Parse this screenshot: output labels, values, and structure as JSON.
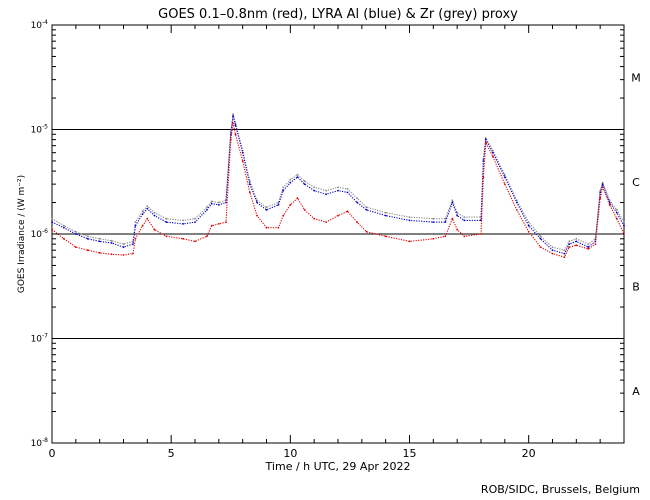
{
  "chart_data": {
    "type": "line",
    "title": "GOES 0.1–0.8nm (red), LYRA Al (blue) & Zr (grey) proxy",
    "xlabel": "Time / h UTC, 29 Apr 2022",
    "ylabel": "GOES Irradiance / (W m⁻²)",
    "xlim": [
      0,
      24
    ],
    "ylim": [
      1e-08,
      0.0001
    ],
    "yscale": "log",
    "x_ticks": [
      0,
      5,
      10,
      15,
      20
    ],
    "y_ticks": [
      {
        "value": 0.0001,
        "mant": "10",
        "exp": "-4"
      },
      {
        "value": 1e-05,
        "mant": "10",
        "exp": "-5"
      },
      {
        "value": 1e-06,
        "mant": "10",
        "exp": "-6"
      },
      {
        "value": 1e-07,
        "mant": "10",
        "exp": "-7"
      },
      {
        "value": 1e-08,
        "mant": "10",
        "exp": "-8"
      }
    ],
    "class_lines": [
      1e-05,
      1e-06,
      1e-07
    ],
    "flare_classes": [
      {
        "label": "M",
        "value": 3.16e-05
      },
      {
        "label": "C",
        "value": 3.16e-06
      },
      {
        "label": "B",
        "value": 3.16e-07
      },
      {
        "label": "A",
        "value": 3.16e-08
      }
    ],
    "series": [
      {
        "name": "GOES 0.1–0.8nm",
        "color": "#e00000",
        "points": [
          [
            0,
            1.1e-06
          ],
          [
            0.5,
            9e-07
          ],
          [
            1,
            7.5e-07
          ],
          [
            1.5,
            7e-07
          ],
          [
            2,
            6.6e-07
          ],
          [
            2.5,
            6.4e-07
          ],
          [
            3,
            6.3e-07
          ],
          [
            3.4,
            6.5e-07
          ],
          [
            3.5,
            9e-07
          ],
          [
            3.8,
            1.2e-06
          ],
          [
            4.0,
            1.4e-06
          ],
          [
            4.3,
            1.1e-06
          ],
          [
            4.8,
            9.5e-07
          ],
          [
            5.5,
            9e-07
          ],
          [
            6.0,
            8.5e-07
          ],
          [
            6.5,
            9.5e-07
          ],
          [
            6.7,
            1.2e-06
          ],
          [
            7.0,
            1.25e-06
          ],
          [
            7.3,
            1.3e-06
          ],
          [
            7.5,
            8e-06
          ],
          [
            7.6,
            1.15e-05
          ],
          [
            7.7,
            9e-06
          ],
          [
            8.0,
            5e-06
          ],
          [
            8.3,
            2.5e-06
          ],
          [
            8.6,
            1.5e-06
          ],
          [
            9.0,
            1.15e-06
          ],
          [
            9.5,
            1.15e-06
          ],
          [
            9.7,
            1.5e-06
          ],
          [
            10.0,
            1.9e-06
          ],
          [
            10.3,
            2.2e-06
          ],
          [
            10.6,
            1.7e-06
          ],
          [
            11.0,
            1.4e-06
          ],
          [
            11.5,
            1.3e-06
          ],
          [
            12.0,
            1.5e-06
          ],
          [
            12.4,
            1.65e-06
          ],
          [
            12.8,
            1.3e-06
          ],
          [
            13.2,
            1.05e-06
          ],
          [
            14.0,
            9.5e-07
          ],
          [
            15.0,
            8.5e-07
          ],
          [
            16.0,
            9e-07
          ],
          [
            16.5,
            9.5e-07
          ],
          [
            16.8,
            1.4e-06
          ],
          [
            17.0,
            1.1e-06
          ],
          [
            17.3,
            9.5e-07
          ],
          [
            18.0,
            1e-06
          ],
          [
            18.1,
            3.5e-06
          ],
          [
            18.2,
            7.5e-06
          ],
          [
            18.5,
            5.5e-06
          ],
          [
            19.0,
            3e-06
          ],
          [
            19.5,
            1.7e-06
          ],
          [
            20.0,
            1.05e-06
          ],
          [
            20.5,
            7.5e-07
          ],
          [
            21.0,
            6.5e-07
          ],
          [
            21.5,
            6e-07
          ],
          [
            21.7,
            7.5e-07
          ],
          [
            22.0,
            7.8e-07
          ],
          [
            22.5,
            7.2e-07
          ],
          [
            22.8,
            8e-07
          ],
          [
            23.0,
            2.2e-06
          ],
          [
            23.1,
            2.8e-06
          ],
          [
            23.4,
            1.9e-06
          ],
          [
            23.7,
            1.4e-06
          ],
          [
            24,
            1e-06
          ]
        ]
      },
      {
        "name": "LYRA Al proxy",
        "color": "#0000cc",
        "points": [
          [
            0,
            1.3e-06
          ],
          [
            0.5,
            1.15e-06
          ],
          [
            1,
            1e-06
          ],
          [
            1.5,
            9e-07
          ],
          [
            2,
            8.5e-07
          ],
          [
            2.5,
            8.2e-07
          ],
          [
            3,
            7.5e-07
          ],
          [
            3.4,
            8e-07
          ],
          [
            3.5,
            1.2e-06
          ],
          [
            3.8,
            1.55e-06
          ],
          [
            4.0,
            1.75e-06
          ],
          [
            4.3,
            1.5e-06
          ],
          [
            4.8,
            1.3e-06
          ],
          [
            5.5,
            1.25e-06
          ],
          [
            6.0,
            1.3e-06
          ],
          [
            6.5,
            1.7e-06
          ],
          [
            6.7,
            1.95e-06
          ],
          [
            7.0,
            1.9e-06
          ],
          [
            7.3,
            2e-06
          ],
          [
            7.5,
            9e-06
          ],
          [
            7.6,
            1.35e-05
          ],
          [
            7.7,
            1.1e-05
          ],
          [
            8.0,
            6e-06
          ],
          [
            8.3,
            3e-06
          ],
          [
            8.6,
            2e-06
          ],
          [
            9.0,
            1.7e-06
          ],
          [
            9.5,
            1.9e-06
          ],
          [
            9.7,
            2.6e-06
          ],
          [
            10.0,
            3.1e-06
          ],
          [
            10.3,
            3.5e-06
          ],
          [
            10.6,
            3e-06
          ],
          [
            11.0,
            2.6e-06
          ],
          [
            11.5,
            2.4e-06
          ],
          [
            12.0,
            2.6e-06
          ],
          [
            12.4,
            2.5e-06
          ],
          [
            12.8,
            2e-06
          ],
          [
            13.2,
            1.7e-06
          ],
          [
            14.0,
            1.5e-06
          ],
          [
            15.0,
            1.35e-06
          ],
          [
            16.0,
            1.3e-06
          ],
          [
            16.5,
            1.3e-06
          ],
          [
            16.8,
            2e-06
          ],
          [
            17.0,
            1.5e-06
          ],
          [
            17.3,
            1.35e-06
          ],
          [
            18.0,
            1.35e-06
          ],
          [
            18.1,
            5e-06
          ],
          [
            18.2,
            8e-06
          ],
          [
            18.5,
            6e-06
          ],
          [
            19.0,
            3.5e-06
          ],
          [
            19.5,
            2e-06
          ],
          [
            20.0,
            1.2e-06
          ],
          [
            20.5,
            9e-07
          ],
          [
            21.0,
            7e-07
          ],
          [
            21.5,
            6.5e-07
          ],
          [
            21.7,
            8e-07
          ],
          [
            22.0,
            8.5e-07
          ],
          [
            22.5,
            7.5e-07
          ],
          [
            22.8,
            8.5e-07
          ],
          [
            23.0,
            2.5e-06
          ],
          [
            23.1,
            3e-06
          ],
          [
            23.4,
            2e-06
          ],
          [
            23.7,
            1.6e-06
          ],
          [
            24,
            1.2e-06
          ]
        ]
      },
      {
        "name": "LYRA Zr proxy",
        "color": "#888888",
        "points": [
          [
            0,
            1.4e-06
          ],
          [
            0.5,
            1.2e-06
          ],
          [
            1,
            1.05e-06
          ],
          [
            1.5,
            9.5e-07
          ],
          [
            2,
            9e-07
          ],
          [
            2.5,
            8.6e-07
          ],
          [
            3,
            8e-07
          ],
          [
            3.4,
            8.5e-07
          ],
          [
            3.5,
            1.3e-06
          ],
          [
            3.8,
            1.65e-06
          ],
          [
            4.0,
            1.85e-06
          ],
          [
            4.3,
            1.6e-06
          ],
          [
            4.8,
            1.4e-06
          ],
          [
            5.5,
            1.35e-06
          ],
          [
            6.0,
            1.4e-06
          ],
          [
            6.5,
            1.8e-06
          ],
          [
            6.7,
            2.05e-06
          ],
          [
            7.0,
            2e-06
          ],
          [
            7.3,
            2.1e-06
          ],
          [
            7.5,
            9.5e-06
          ],
          [
            7.6,
            1.4e-05
          ],
          [
            7.7,
            1.15e-05
          ],
          [
            8.0,
            6.3e-06
          ],
          [
            8.3,
            3.2e-06
          ],
          [
            8.6,
            2.1e-06
          ],
          [
            9.0,
            1.8e-06
          ],
          [
            9.5,
            2e-06
          ],
          [
            9.7,
            2.8e-06
          ],
          [
            10.0,
            3.3e-06
          ],
          [
            10.3,
            3.7e-06
          ],
          [
            10.6,
            3.2e-06
          ],
          [
            11.0,
            2.8e-06
          ],
          [
            11.5,
            2.6e-06
          ],
          [
            12.0,
            2.8e-06
          ],
          [
            12.4,
            2.7e-06
          ],
          [
            12.8,
            2.2e-06
          ],
          [
            13.2,
            1.8e-06
          ],
          [
            14.0,
            1.6e-06
          ],
          [
            15.0,
            1.45e-06
          ],
          [
            16.0,
            1.4e-06
          ],
          [
            16.5,
            1.4e-06
          ],
          [
            16.8,
            2.1e-06
          ],
          [
            17.0,
            1.6e-06
          ],
          [
            17.3,
            1.45e-06
          ],
          [
            18.0,
            1.45e-06
          ],
          [
            18.1,
            5.2e-06
          ],
          [
            18.2,
            8.3e-06
          ],
          [
            18.5,
            6.3e-06
          ],
          [
            19.0,
            3.7e-06
          ],
          [
            19.5,
            2.1e-06
          ],
          [
            20.0,
            1.3e-06
          ],
          [
            20.5,
            9.5e-07
          ],
          [
            21.0,
            7.5e-07
          ],
          [
            21.5,
            7e-07
          ],
          [
            21.7,
            8.5e-07
          ],
          [
            22.0,
            9e-07
          ],
          [
            22.5,
            8e-07
          ],
          [
            22.8,
            9e-07
          ],
          [
            23.0,
            2.6e-06
          ],
          [
            23.1,
            3.1e-06
          ],
          [
            23.4,
            2.1e-06
          ],
          [
            23.7,
            1.7e-06
          ],
          [
            24,
            1.3e-06
          ]
        ]
      }
    ]
  },
  "footer": {
    "credit": "ROB/SIDC, Brussels, Belgium"
  }
}
